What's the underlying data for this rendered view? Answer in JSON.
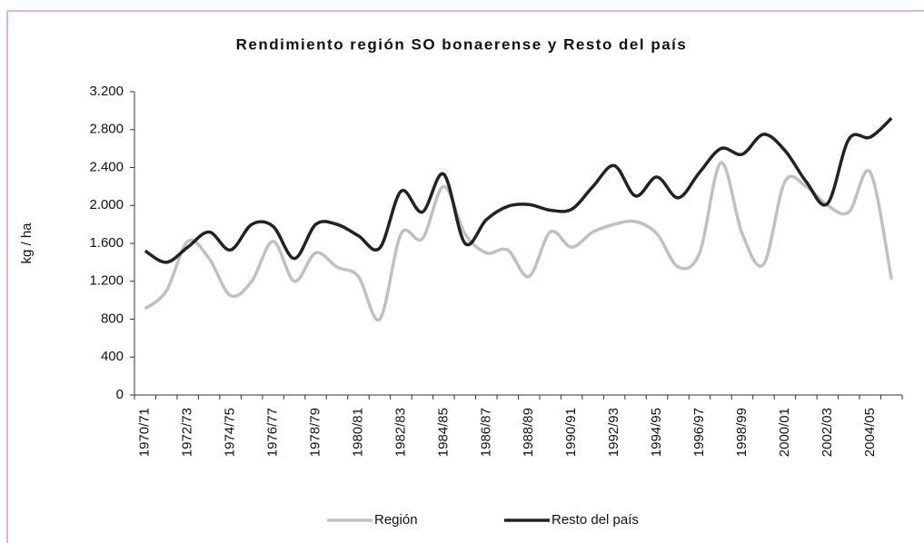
{
  "chart_data": {
    "type": "line",
    "title": "Rendimiento región SO bonaerense y Resto del país",
    "y_label": "kg / ha",
    "categories": [
      "1970/71",
      null,
      "1972/73",
      null,
      "1974/75",
      null,
      "1976/77",
      null,
      "1978/79",
      null,
      "1980/81",
      null,
      "1982/83",
      null,
      "1984/85",
      null,
      "1986/87",
      null,
      "1988/89",
      null,
      "1990/91",
      null,
      "1992/93",
      null,
      "1994/95",
      null,
      "1996/97",
      null,
      "1998/99",
      null,
      "2000/01",
      null,
      "2002/03",
      null,
      "2004/05",
      null
    ],
    "series": [
      {
        "name": "Región",
        "color": "#c0c0c0",
        "values": [
          910,
          1100,
          1620,
          1440,
          1050,
          1200,
          1620,
          1200,
          1500,
          1350,
          1250,
          800,
          1700,
          1650,
          2200,
          1700,
          1500,
          1530,
          1250,
          1720,
          1560,
          1720,
          1800,
          1830,
          1700,
          1350,
          1500,
          2450,
          1700,
          1380,
          2250,
          2200,
          2000,
          1930,
          2350,
          1220
        ]
      },
      {
        "name": "Resto del país",
        "color": "#222222",
        "values": [
          1520,
          1400,
          1560,
          1720,
          1530,
          1800,
          1780,
          1440,
          1800,
          1800,
          1680,
          1550,
          2150,
          1930,
          2330,
          1600,
          1850,
          1990,
          2010,
          1950,
          1960,
          2200,
          2420,
          2100,
          2300,
          2080,
          2350,
          2600,
          2540,
          2750,
          2580,
          2250,
          2020,
          2700,
          2720,
          2920
        ]
      }
    ],
    "ylim": [
      0,
      3200
    ],
    "yticks": [
      0,
      {
        "value": 400,
        "label": "400"
      },
      {
        "value": 800,
        "label": "800"
      },
      {
        "value": 1200,
        "label": "1.200"
      },
      {
        "value": 1600,
        "label": "1.600"
      },
      {
        "value": 2000,
        "label": "2.000"
      },
      {
        "value": 2400,
        "label": "2.400"
      },
      {
        "value": 2800,
        "label": "2.800"
      },
      {
        "value": 3200,
        "label": "3.200"
      }
    ],
    "legend": "bottom"
  }
}
